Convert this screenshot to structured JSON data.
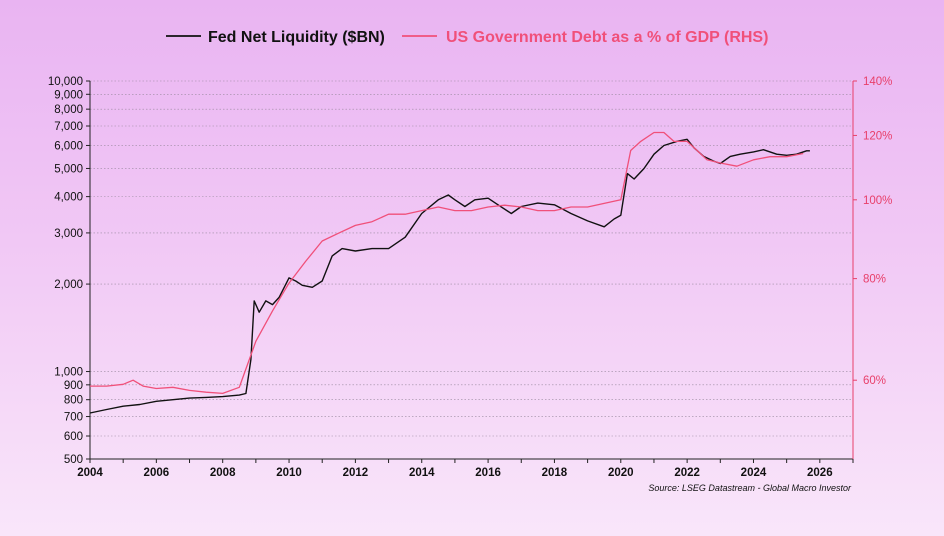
{
  "chart_data": {
    "type": "line",
    "legend_placement": "top-center",
    "grid": "horizontal dotted",
    "source": "Source: LSEG Datastream - Global Macro Investor",
    "x_axis": {
      "range": [
        2004,
        2027
      ],
      "ticks": [
        "2004",
        "2006",
        "2008",
        "2010",
        "2012",
        "2014",
        "2016",
        "2018",
        "2020",
        "2022",
        "2024",
        "2026"
      ]
    },
    "y_left": {
      "scale": "log",
      "range": [
        500,
        10000
      ],
      "ticks": [
        500,
        600,
        700,
        800,
        900,
        1000,
        2000,
        3000,
        4000,
        5000,
        6000,
        7000,
        8000,
        9000,
        10000
      ],
      "tick_labels": [
        "500",
        "600",
        "700",
        "800",
        "900",
        "1,000",
        "2,000",
        "3,000",
        "4,000",
        "5,000",
        "6,000",
        "7,000",
        "8,000",
        "9,000",
        "10,000"
      ]
    },
    "y_right": {
      "scale": "log",
      "range": [
        48,
        140
      ],
      "ticks": [
        60,
        80,
        100,
        120,
        140
      ],
      "tick_labels": [
        "60%",
        "80%",
        "100%",
        "120%",
        "140%"
      ]
    },
    "series": [
      {
        "name": "Fed Net Liquidity ($BN)",
        "axis": "left",
        "color": "#111111",
        "points": [
          [
            2004.0,
            720
          ],
          [
            2004.5,
            740
          ],
          [
            2005.0,
            760
          ],
          [
            2005.5,
            770
          ],
          [
            2006.0,
            790
          ],
          [
            2006.5,
            800
          ],
          [
            2007.0,
            810
          ],
          [
            2007.5,
            815
          ],
          [
            2008.0,
            820
          ],
          [
            2008.5,
            830
          ],
          [
            2008.7,
            840
          ],
          [
            2008.85,
            1100
          ],
          [
            2008.95,
            1750
          ],
          [
            2009.1,
            1600
          ],
          [
            2009.3,
            1750
          ],
          [
            2009.5,
            1700
          ],
          [
            2009.7,
            1800
          ],
          [
            2010.0,
            2100
          ],
          [
            2010.2,
            2050
          ],
          [
            2010.4,
            1980
          ],
          [
            2010.7,
            1950
          ],
          [
            2011.0,
            2050
          ],
          [
            2011.3,
            2500
          ],
          [
            2011.6,
            2650
          ],
          [
            2012.0,
            2600
          ],
          [
            2012.5,
            2650
          ],
          [
            2013.0,
            2650
          ],
          [
            2013.5,
            2900
          ],
          [
            2014.0,
            3500
          ],
          [
            2014.5,
            3900
          ],
          [
            2014.8,
            4050
          ],
          [
            2015.0,
            3900
          ],
          [
            2015.3,
            3700
          ],
          [
            2015.6,
            3900
          ],
          [
            2016.0,
            3950
          ],
          [
            2016.3,
            3750
          ],
          [
            2016.7,
            3500
          ],
          [
            2017.0,
            3700
          ],
          [
            2017.5,
            3800
          ],
          [
            2018.0,
            3750
          ],
          [
            2018.5,
            3500
          ],
          [
            2019.0,
            3300
          ],
          [
            2019.5,
            3150
          ],
          [
            2019.8,
            3350
          ],
          [
            2020.0,
            3450
          ],
          [
            2020.2,
            4800
          ],
          [
            2020.4,
            4600
          ],
          [
            2020.7,
            5000
          ],
          [
            2021.0,
            5600
          ],
          [
            2021.3,
            6000
          ],
          [
            2021.7,
            6200
          ],
          [
            2022.0,
            6300
          ],
          [
            2022.2,
            5900
          ],
          [
            2022.5,
            5500
          ],
          [
            2022.8,
            5300
          ],
          [
            2023.0,
            5200
          ],
          [
            2023.3,
            5500
          ],
          [
            2023.6,
            5600
          ],
          [
            2024.0,
            5700
          ],
          [
            2024.3,
            5800
          ],
          [
            2024.7,
            5600
          ],
          [
            2025.0,
            5550
          ],
          [
            2025.3,
            5600
          ],
          [
            2025.6,
            5750
          ],
          [
            2025.7,
            5750
          ]
        ]
      },
      {
        "name": "US Government Debt as a % of GDP (RHS)",
        "axis": "right",
        "color": "#f0507a",
        "points": [
          [
            2004.0,
            59
          ],
          [
            2004.5,
            59
          ],
          [
            2005.0,
            59.3
          ],
          [
            2005.3,
            60
          ],
          [
            2005.6,
            59
          ],
          [
            2006.0,
            58.6
          ],
          [
            2006.5,
            58.8
          ],
          [
            2007.0,
            58.3
          ],
          [
            2007.5,
            58
          ],
          [
            2008.0,
            57.8
          ],
          [
            2008.5,
            58.8
          ],
          [
            2009.0,
            67
          ],
          [
            2009.5,
            73
          ],
          [
            2010.0,
            79
          ],
          [
            2010.5,
            84
          ],
          [
            2011.0,
            89
          ],
          [
            2011.5,
            91
          ],
          [
            2012.0,
            93
          ],
          [
            2012.5,
            94
          ],
          [
            2013.0,
            96
          ],
          [
            2013.5,
            96
          ],
          [
            2014.0,
            97
          ],
          [
            2014.5,
            98
          ],
          [
            2015.0,
            97
          ],
          [
            2015.5,
            97
          ],
          [
            2016.0,
            98
          ],
          [
            2016.5,
            98.5
          ],
          [
            2017.0,
            98
          ],
          [
            2017.5,
            97
          ],
          [
            2018.0,
            97
          ],
          [
            2018.5,
            98
          ],
          [
            2019.0,
            98
          ],
          [
            2019.5,
            99
          ],
          [
            2020.0,
            100
          ],
          [
            2020.3,
            115
          ],
          [
            2020.6,
            118
          ],
          [
            2021.0,
            121
          ],
          [
            2021.3,
            121
          ],
          [
            2021.6,
            118
          ],
          [
            2022.0,
            118
          ],
          [
            2022.3,
            115
          ],
          [
            2022.6,
            112
          ],
          [
            2023.0,
            111
          ],
          [
            2023.5,
            110
          ],
          [
            2024.0,
            112
          ],
          [
            2024.5,
            113
          ],
          [
            2025.0,
            113
          ],
          [
            2025.5,
            114
          ]
        ]
      }
    ]
  }
}
